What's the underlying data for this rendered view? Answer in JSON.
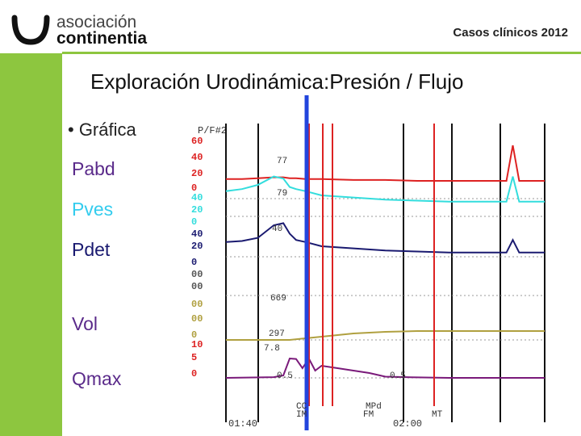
{
  "header": {
    "logo_text_line1": "asociación",
    "logo_text_line2": "continentia",
    "right_title": "Casos clínicos 2012"
  },
  "slide": {
    "title": "Exploración Urodinámica:Presión / Flujo",
    "bullet": "• Gráfica",
    "labels": [
      {
        "text": "Pabd",
        "color": "#5a2a8a"
      },
      {
        "text": "Pves",
        "color": "#33ccee"
      },
      {
        "text": "Pdet",
        "color": "#1a1a70"
      },
      {
        "text": "Vol",
        "color": "#5a2a8a"
      },
      {
        "text": "Qmax",
        "color": "#5a2a8a"
      }
    ]
  },
  "colors": {
    "sidebar": "#8dc63f",
    "pabd": "#dd2222",
    "pves": "#33dddd",
    "pdet": "#1a1a70",
    "vol": "#b0a040",
    "flow": "#7a1a7a",
    "event_red": "#dd2222",
    "cursor": "#2244dd"
  },
  "chart_data": {
    "type": "line",
    "header_label": "P/F#2",
    "x_ticks": [
      "01:40",
      "02:00"
    ],
    "event_labels": [
      "CC",
      "MPd",
      "IM",
      "FM",
      "MT"
    ],
    "annotations": [
      "77",
      "79",
      "40",
      "669",
      "297",
      "7.8",
      "0.5",
      "0.5"
    ],
    "axis_ticks": {
      "pabd": [
        "60",
        "40",
        "20",
        "0"
      ],
      "pves": [
        "40",
        "20",
        "0"
      ],
      "pdet": [
        "40",
        "20",
        "0"
      ],
      "extra": [
        "00",
        "00"
      ],
      "vol": [
        "00",
        "00",
        "0"
      ],
      "flow": [
        "10",
        "5",
        "0"
      ]
    },
    "series": [
      {
        "name": "Pabd",
        "x": [
          0,
          5,
          10,
          15,
          18,
          20,
          22,
          25,
          30,
          40,
          50,
          60,
          70,
          80,
          88,
          90,
          92,
          94,
          100
        ],
        "y": [
          22,
          22,
          23,
          24,
          24,
          23,
          23,
          22,
          22,
          21,
          21,
          20,
          20,
          20,
          20,
          60,
          20,
          20,
          20
        ]
      },
      {
        "name": "Pves",
        "x": [
          0,
          5,
          10,
          15,
          18,
          20,
          22,
          25,
          30,
          40,
          50,
          60,
          70,
          80,
          88,
          90,
          92,
          94,
          100
        ],
        "y": [
          24,
          26,
          30,
          38,
          36,
          28,
          26,
          24,
          20,
          18,
          16,
          15,
          14,
          14,
          14,
          38,
          14,
          14,
          14
        ]
      },
      {
        "name": "Pdet",
        "x": [
          0,
          5,
          10,
          15,
          18,
          20,
          22,
          25,
          30,
          40,
          50,
          60,
          70,
          80,
          88,
          90,
          92,
          94,
          100
        ],
        "y": [
          14,
          15,
          18,
          30,
          32,
          22,
          16,
          14,
          10,
          8,
          6,
          5,
          4,
          4,
          4,
          16,
          4,
          4,
          4
        ]
      },
      {
        "name": "Vol",
        "x": [
          0,
          20,
          30,
          40,
          50,
          60,
          70,
          80,
          100
        ],
        "y": [
          0,
          0,
          4,
          8,
          10,
          11,
          11,
          11,
          11
        ]
      },
      {
        "name": "Qmax",
        "x": [
          0,
          15,
          18,
          20,
          22,
          24,
          26,
          28,
          30,
          35,
          40,
          45,
          50,
          60,
          70,
          100
        ],
        "y": [
          0,
          0.3,
          1,
          8,
          7.8,
          4,
          8,
          3,
          5,
          4,
          3,
          2,
          0.5,
          0.2,
          0,
          0
        ]
      }
    ]
  }
}
